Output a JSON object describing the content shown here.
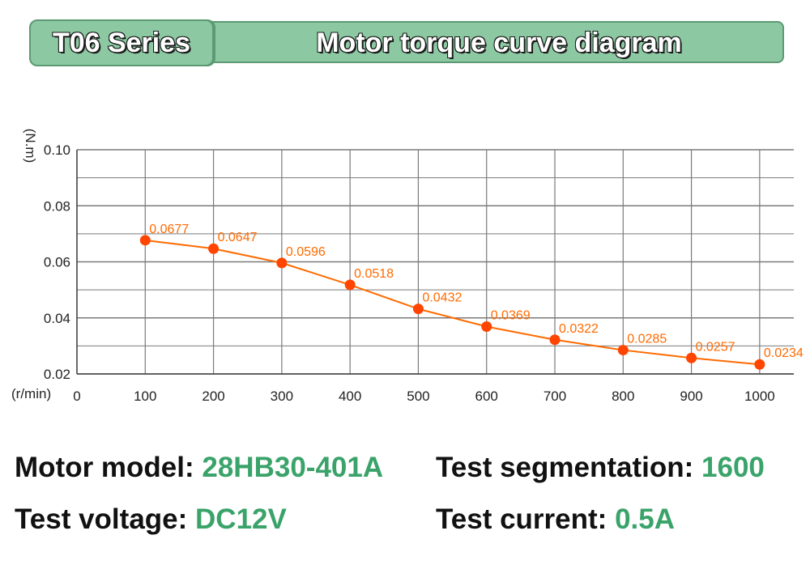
{
  "header": {
    "series": "T06 Series",
    "title": "Motor torque curve diagram"
  },
  "chart_data": {
    "type": "line",
    "ylabel": "(N.m)",
    "xlabel": "(r/min)",
    "x_ticks": [
      0,
      100,
      200,
      300,
      400,
      500,
      600,
      700,
      800,
      900,
      1000
    ],
    "y_ticks": [
      "0.02",
      "0.04",
      "0.06",
      "0.08",
      "0.10"
    ],
    "xlim": [
      0,
      1050
    ],
    "ylim": [
      0.02,
      0.1
    ],
    "grid": true,
    "series": [
      {
        "x": [
          100,
          200,
          300,
          400,
          500,
          600,
          700,
          800,
          900,
          1000
        ],
        "y": [
          0.0677,
          0.0647,
          0.0596,
          0.0518,
          0.0432,
          0.0369,
          0.0322,
          0.0285,
          0.0257,
          0.0234
        ],
        "labels": [
          "0.0677",
          "0.0647",
          "0.0596",
          "0.0518",
          "0.0432",
          "0.0369",
          "0.0322",
          "0.0285",
          "0.0257",
          "0.0234"
        ],
        "color": "#ff6a00"
      }
    ]
  },
  "specs": {
    "motor_model_label": "Motor model:",
    "motor_model_value": "28HB30-401A",
    "segmentation_label": "Test segmentation:",
    "segmentation_value": "1600",
    "voltage_label": "Test voltage:",
    "voltage_value": "DC12V",
    "current_label": "Test current:",
    "current_value": "0.5A"
  },
  "colors": {
    "accent_green": "#3aa36a",
    "banner_green": "#8cc9a3",
    "curve_orange": "#ff6a00"
  }
}
